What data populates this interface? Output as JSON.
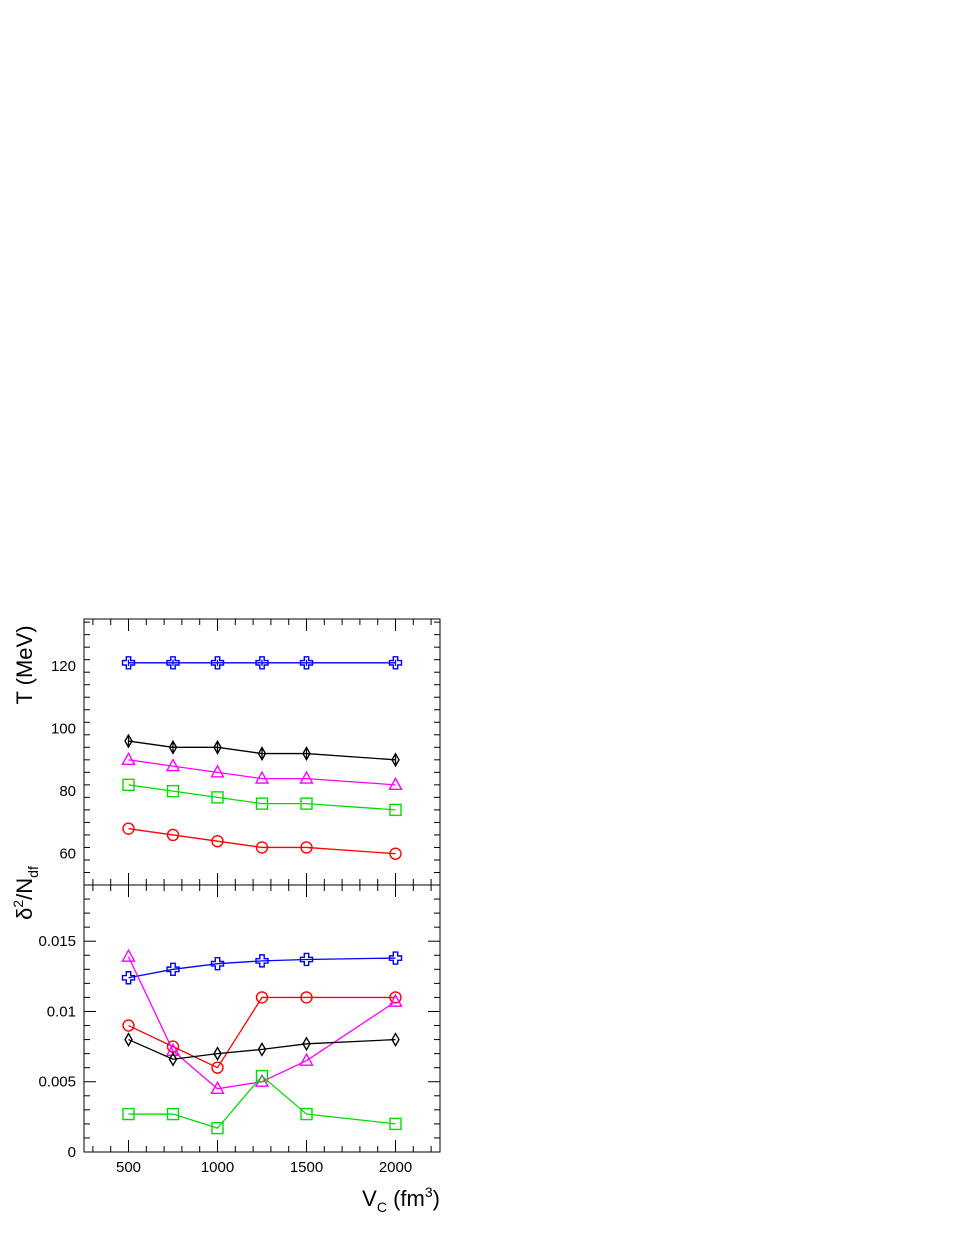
{
  "chart_data": [
    {
      "id": "top",
      "type": "line",
      "ylabel": "T (MeV)",
      "xlim": [
        250,
        2250
      ],
      "ylim": [
        50,
        135
      ],
      "yticks": [
        60,
        80,
        100,
        120
      ],
      "x": [
        500,
        750,
        1000,
        1250,
        1500,
        2000
      ],
      "series": [
        {
          "color": "#0000ff",
          "marker": "cross",
          "values": [
            121,
            121,
            121,
            121,
            121,
            121
          ],
          "errors": [
            1,
            1,
            1,
            1,
            1,
            1
          ]
        },
        {
          "color": "#000000",
          "marker": "diamond",
          "values": [
            96,
            94,
            94,
            92,
            92,
            90
          ],
          "errors": [
            2,
            2,
            2,
            2,
            2,
            2
          ]
        },
        {
          "color": "#ff00ff",
          "marker": "triangle",
          "values": [
            90,
            88,
            86,
            84,
            84,
            82
          ],
          "errors": []
        },
        {
          "color": "#00dd00",
          "marker": "square",
          "values": [
            82,
            80,
            78,
            76,
            76,
            74
          ],
          "errors": []
        },
        {
          "color": "#ff0000",
          "marker": "circle",
          "values": [
            68,
            66,
            64,
            62,
            62,
            60
          ],
          "errors": []
        }
      ]
    },
    {
      "id": "bottom",
      "type": "line",
      "ylabel_main": "δ",
      "ylabel_sup": "2",
      "ylabel_mid": "/N",
      "ylabel_sub": "df",
      "xlabel_main": "V",
      "xlabel_sub": "C",
      "xlabel_mid": " (fm",
      "xlabel_sup": "3",
      "xlabel_end": ")",
      "xlim": [
        250,
        2250
      ],
      "ylim": [
        0,
        0.019
      ],
      "xticks": [
        500,
        1000,
        1500,
        2000
      ],
      "yticks": [
        0,
        0.005,
        0.01,
        0.015
      ],
      "ytick_labels": [
        "0",
        "0.005",
        "0.01",
        "0.015"
      ],
      "x": [
        500,
        750,
        1000,
        1250,
        1500,
        2000
      ],
      "series": [
        {
          "color": "#0000ff",
          "marker": "cross",
          "values": [
            0.0124,
            0.013,
            0.0134,
            0.0136,
            0.0137,
            0.0138
          ]
        },
        {
          "color": "#ff0000",
          "marker": "circle",
          "values": [
            0.009,
            0.0075,
            0.006,
            0.011,
            0.011,
            0.011
          ]
        },
        {
          "color": "#ff00ff",
          "marker": "triangle",
          "values": [
            0.0139,
            0.0072,
            0.0045,
            0.005,
            0.0065,
            0.0107
          ]
        },
        {
          "color": "#000000",
          "marker": "diamond",
          "values": [
            0.008,
            0.0066,
            0.007,
            0.0073,
            0.0077,
            0.008
          ]
        },
        {
          "color": "#00dd00",
          "marker": "square",
          "values": [
            0.0027,
            0.0027,
            0.0017,
            0.0054,
            0.0027,
            0.002
          ]
        }
      ]
    }
  ]
}
